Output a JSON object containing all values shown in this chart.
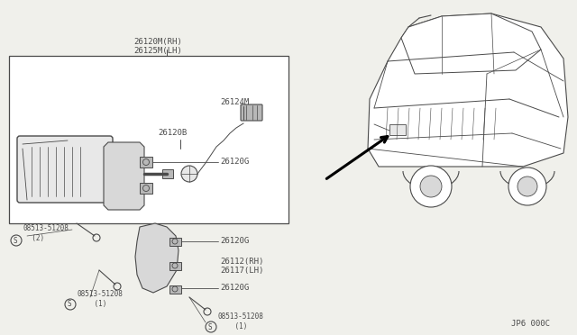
{
  "bg_color": "#f0f0eb",
  "line_color": "#4a4a4a",
  "white": "#ffffff",
  "gray1": "#d8d8d8",
  "gray2": "#b8b8b8",
  "gray3": "#e8e8e8",
  "footer": "JP6 000C",
  "fs": 6.5,
  "labels": {
    "top1": "26120M(RH)",
    "top2": "26125M(LH)",
    "26124M": "26124M",
    "26120B": "26120B",
    "26120G": "26120G",
    "26112": "26112(RH)",
    "26117": "26117(LH)",
    "screw2": "08513-51208\n  (2)",
    "screw1a": "08513-51208\n    (1)",
    "screw1b": "08513-51208\n    (1)"
  }
}
